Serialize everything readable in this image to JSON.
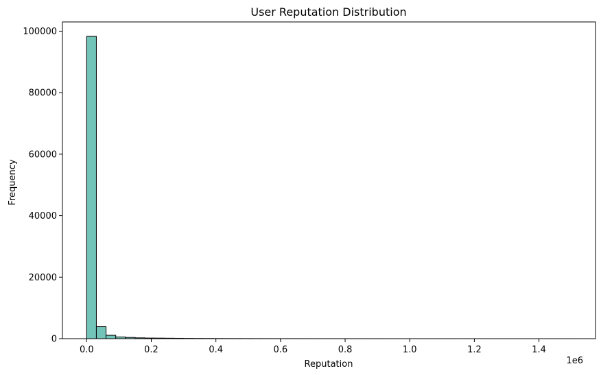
{
  "chart_data": {
    "type": "bar",
    "title": "User Reputation Distribution",
    "xlabel": "Reputation",
    "ylabel": "Frequency",
    "x_scale_label": "1e6",
    "xlim": [
      -75000,
      1575000
    ],
    "ylim": [
      0,
      103000
    ],
    "bin_width": 30000,
    "bins_start": 0,
    "values": [
      98300,
      3900,
      1100,
      550,
      400,
      270,
      200,
      180,
      150,
      120,
      90,
      70,
      60,
      50,
      40,
      35,
      30,
      25,
      22,
      20,
      18,
      15,
      13,
      12,
      11,
      10,
      9,
      8,
      7,
      6,
      6,
      5,
      5,
      4,
      4,
      3,
      3,
      3,
      2,
      2,
      2,
      2,
      1,
      1,
      1,
      1,
      1,
      1,
      1,
      1
    ],
    "xticks": [
      0,
      200000,
      400000,
      600000,
      800000,
      1000000,
      1200000,
      1400000
    ],
    "xtick_labels": [
      "0.0",
      "0.2",
      "0.4",
      "0.6",
      "0.8",
      "1.0",
      "1.2",
      "1.4"
    ],
    "yticks": [
      0,
      20000,
      40000,
      60000,
      80000,
      100000
    ],
    "ytick_labels": [
      "0",
      "20000",
      "40000",
      "60000",
      "80000",
      "100000"
    ],
    "bar_color": "#72c4b8",
    "edge_color": "#000000",
    "grid": false,
    "legend": "none"
  }
}
